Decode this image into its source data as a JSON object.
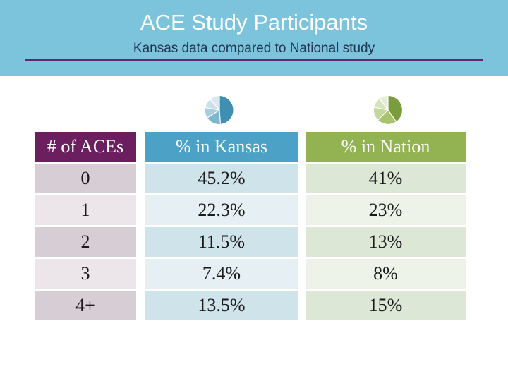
{
  "header": {
    "title": "ACE Study Participants",
    "subtitle": "Kansas data compared to National study"
  },
  "table": {
    "columns": [
      "# of ACEs",
      "% in Kansas",
      "% in Nation"
    ],
    "rows": [
      [
        "0",
        "45.2%",
        "41%"
      ],
      [
        "1",
        "22.3%",
        "23%"
      ],
      [
        "2",
        "11.5%",
        "13%"
      ],
      [
        "3",
        "7.4%",
        "8%"
      ],
      [
        "4+",
        "13.5%",
        "15%"
      ]
    ]
  },
  "colors": {
    "banner": "#7cc3dc",
    "rule": "#5b2a6e",
    "aces_header": "#6b1f5e",
    "kansas_header": "#4ba2c6",
    "nation_header": "#93b352"
  },
  "icons": {
    "kansas": "kansas-pie-chart-icon",
    "nation": "nation-pie-chart-icon"
  }
}
